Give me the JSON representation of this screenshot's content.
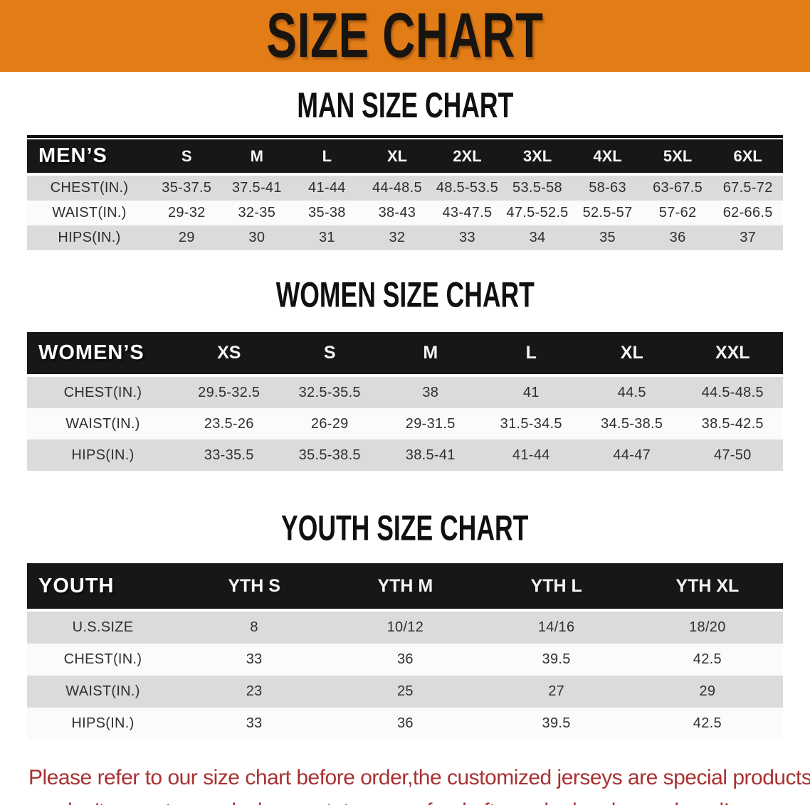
{
  "banner": {
    "title": "SIZE CHART"
  },
  "sections": [
    {
      "id": "men",
      "title": "MAN SIZE CHART",
      "group_label": "MEN’S",
      "columns": [
        "S",
        "M",
        "L",
        "XL",
        "2XL",
        "3XL",
        "4XL",
        "5XL",
        "6XL"
      ],
      "rows": [
        {
          "label": "CHEST(IN.)",
          "values": [
            "35-37.5",
            "37.5-41",
            "41-44",
            "44-48.5",
            "48.5-53.5",
            "53.5-58",
            "58-63",
            "63-67.5",
            "67.5-72"
          ]
        },
        {
          "label": "WAIST(IN.)",
          "values": [
            "29-32",
            "32-35",
            "35-38",
            "38-43",
            "43-47.5",
            "47.5-52.5",
            "52.5-57",
            "57-62",
            "62-66.5"
          ]
        },
        {
          "label": "HIPS(IN.)",
          "values": [
            "29",
            "30",
            "31",
            "32",
            "33",
            "34",
            "35",
            "36",
            "37"
          ]
        }
      ]
    },
    {
      "id": "women",
      "title": "WOMEN SIZE CHART",
      "group_label": "WOMEN’S",
      "columns": [
        "XS",
        "S",
        "M",
        "L",
        "XL",
        "XXL"
      ],
      "rows": [
        {
          "label": "CHEST(IN.)",
          "values": [
            "29.5-32.5",
            "32.5-35.5",
            "38",
            "41",
            "44.5",
            "44.5-48.5"
          ]
        },
        {
          "label": "WAIST(IN.)",
          "values": [
            "23.5-26",
            "26-29",
            "29-31.5",
            "31.5-34.5",
            "34.5-38.5",
            "38.5-42.5"
          ]
        },
        {
          "label": "HIPS(IN.)",
          "values": [
            "33-35.5",
            "35.5-38.5",
            "38.5-41",
            "41-44",
            "44-47",
            "47-50"
          ]
        }
      ]
    },
    {
      "id": "youth",
      "title": "YOUTH SIZE CHART",
      "group_label": "YOUTH",
      "columns": [
        "YTH S",
        "YTH M",
        "YTH L",
        "YTH XL"
      ],
      "rows": [
        {
          "label": "U.S.SIZE",
          "values": [
            "8",
            "10/12",
            "14/16",
            "18/20"
          ]
        },
        {
          "label": "CHEST(IN.)",
          "values": [
            "33",
            "36",
            "39.5",
            "42.5"
          ]
        },
        {
          "label": "WAIST(IN.)",
          "values": [
            "23",
            "25",
            "27",
            "29"
          ]
        },
        {
          "label": "HIPS(IN.)",
          "values": [
            "33",
            "36",
            "39.5",
            "42.5"
          ]
        }
      ]
    }
  ],
  "footer": {
    "line1": "Please refer to our size chart before order,the customized jerseys are special products,",
    "line2": "we don't accept cancel, change, teturn or refund after order has been placed!"
  },
  "colors": {
    "banner_bg": "#E27C17",
    "header_bar": "#171717",
    "row_gray": "#DBDBDB",
    "row_white": "#FBFBFB",
    "footer_red": "#A93131"
  }
}
